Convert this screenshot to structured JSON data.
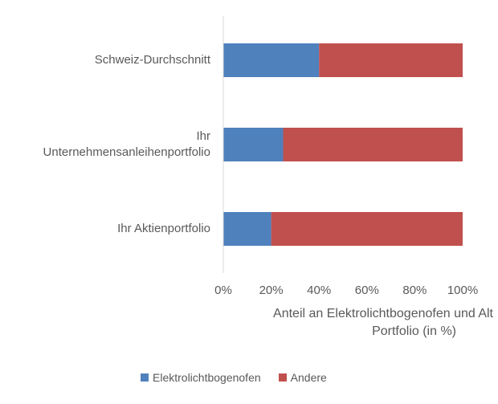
{
  "chart_data": {
    "type": "bar",
    "orientation": "horizontal",
    "stacked": true,
    "categories": [
      "Ihr Aktienportfolio",
      "Ihr\nUnternehmensanleihenportfolio",
      "Schweiz-Durchschnitt"
    ],
    "series": [
      {
        "name": "Elektrolichtbogenofen",
        "values": [
          20,
          25,
          40
        ],
        "color": "#4f81bd"
      },
      {
        "name": "Andere",
        "values": [
          80,
          75,
          60
        ],
        "color": "#c0504d"
      }
    ],
    "xlim": [
      0,
      100
    ],
    "xticks": [
      "0%",
      "20%",
      "40%",
      "60%",
      "80%",
      "100%"
    ],
    "xlabel_line1": "Anteil an Elektrolichtbogenofen und Alt",
    "xlabel_line2": "Portfolio (in %)",
    "legend_position": "bottom",
    "grid": false
  }
}
